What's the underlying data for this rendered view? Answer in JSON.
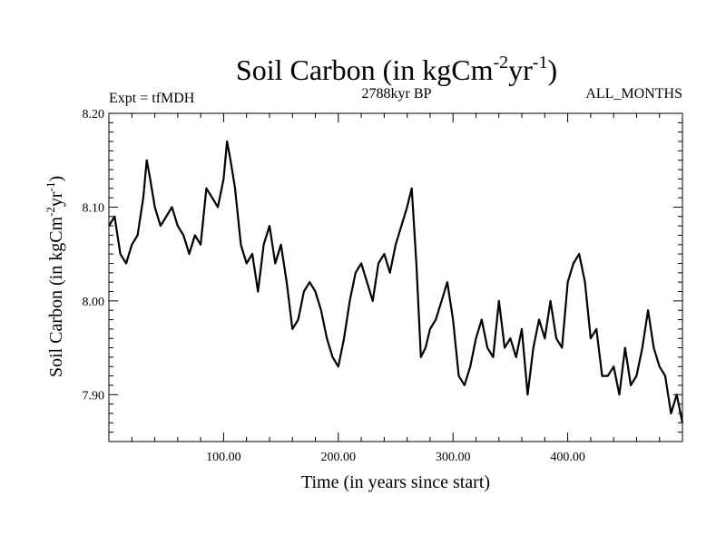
{
  "chart_data": {
    "type": "line",
    "title": {
      "main": "Soil Carbon (in kgCm",
      "sup1": "-2",
      "mid": "yr",
      "sup2": "-1",
      "end": ")"
    },
    "subtitle_left": "Expt = tfMDH",
    "subtitle_center": "2788kyr BP",
    "subtitle_right": "ALL_MONTHS",
    "xlabel": "Time (in years since start)",
    "ylabel": {
      "main": "Soil Carbon (in kgCm",
      "sup1": "-2",
      "mid": "yr",
      "sup2": "-1",
      "end": ")"
    },
    "xlim": [
      0,
      500
    ],
    "ylim": [
      7.85,
      8.2
    ],
    "xticks": [
      100,
      200,
      300,
      400
    ],
    "xtick_labels": [
      "100.00",
      "200.00",
      "300.00",
      "400.00"
    ],
    "yticks": [
      7.9,
      8.0,
      8.1,
      8.2
    ],
    "ytick_labels": [
      "7.90",
      "8.00",
      "8.10",
      "8.20"
    ],
    "grid": false,
    "series": [
      {
        "name": "Soil Carbon",
        "color": "#000000",
        "x": [
          0,
          5,
          10,
          15,
          20,
          25,
          30,
          33,
          36,
          40,
          45,
          50,
          55,
          60,
          65,
          70,
          75,
          80,
          85,
          90,
          95,
          100,
          103,
          106,
          110,
          115,
          120,
          125,
          130,
          135,
          140,
          145,
          150,
          155,
          160,
          165,
          170,
          175,
          180,
          185,
          190,
          195,
          200,
          205,
          210,
          215,
          220,
          225,
          230,
          235,
          240,
          245,
          250,
          255,
          260,
          264,
          268,
          272,
          276,
          280,
          285,
          290,
          295,
          300,
          305,
          310,
          315,
          320,
          325,
          330,
          335,
          340,
          345,
          350,
          355,
          360,
          365,
          370,
          375,
          380,
          385,
          390,
          395,
          400,
          405,
          410,
          415,
          420,
          425,
          430,
          435,
          440,
          445,
          450,
          455,
          460,
          465,
          470,
          475,
          480,
          485,
          490,
          495,
          500
        ],
        "values": [
          8.08,
          8.09,
          8.05,
          8.04,
          8.06,
          8.07,
          8.11,
          8.15,
          8.13,
          8.1,
          8.08,
          8.09,
          8.1,
          8.08,
          8.07,
          8.05,
          8.07,
          8.06,
          8.12,
          8.11,
          8.1,
          8.13,
          8.17,
          8.15,
          8.12,
          8.06,
          8.04,
          8.05,
          8.01,
          8.06,
          8.08,
          8.04,
          8.06,
          8.02,
          7.97,
          7.98,
          8.01,
          8.02,
          8.01,
          7.99,
          7.96,
          7.94,
          7.93,
          7.96,
          8.0,
          8.03,
          8.04,
          8.02,
          8.0,
          8.04,
          8.05,
          8.03,
          8.06,
          8.08,
          8.1,
          8.12,
          8.04,
          7.94,
          7.95,
          7.97,
          7.98,
          8.0,
          8.02,
          7.98,
          7.92,
          7.91,
          7.93,
          7.96,
          7.98,
          7.95,
          7.94,
          8.0,
          7.95,
          7.96,
          7.94,
          7.97,
          7.9,
          7.95,
          7.98,
          7.96,
          8.0,
          7.96,
          7.95,
          8.02,
          8.04,
          8.05,
          8.02,
          7.96,
          7.97,
          7.92,
          7.92,
          7.93,
          7.9,
          7.95,
          7.91,
          7.92,
          7.95,
          7.99,
          7.95,
          7.93,
          7.92,
          7.88,
          7.9,
          7.87
        ]
      }
    ]
  }
}
